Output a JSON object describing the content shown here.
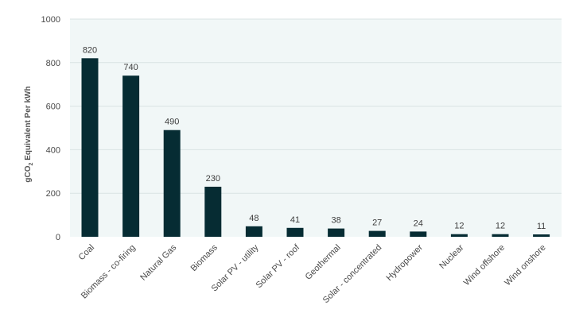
{
  "chart_data": {
    "type": "bar",
    "title": "",
    "xlabel": "",
    "ylabel_prefix": "gCO",
    "ylabel_subscript": "2",
    "ylabel_suffix": " Equivalent Per kWh",
    "ylim": [
      0,
      1000
    ],
    "yticks": [
      0,
      200,
      400,
      600,
      800,
      1000
    ],
    "ytick_labels": [
      "0",
      "200",
      "400",
      "600",
      "800",
      "1000"
    ],
    "grid": true,
    "categories": [
      "Coal",
      "Biomass - co-firing",
      "Natural Gas",
      "Biomass",
      "Solar PV - utility",
      "Solar PV - roof",
      "Geothermal",
      "Solar - concentrated",
      "Hydropower",
      "Nuclear",
      "Wind offshore",
      "Wind onshore"
    ],
    "values": [
      820,
      740,
      490,
      230,
      48,
      41,
      38,
      27,
      24,
      12,
      12,
      11
    ],
    "data_labels": [
      "820",
      "740",
      "490",
      "230",
      "48",
      "41",
      "38",
      "27",
      "24",
      "12",
      "12",
      "11"
    ],
    "colors": {
      "bar": "#062c33",
      "plot_background": "#f1f7f7",
      "grid": "#d9e3e3"
    }
  }
}
